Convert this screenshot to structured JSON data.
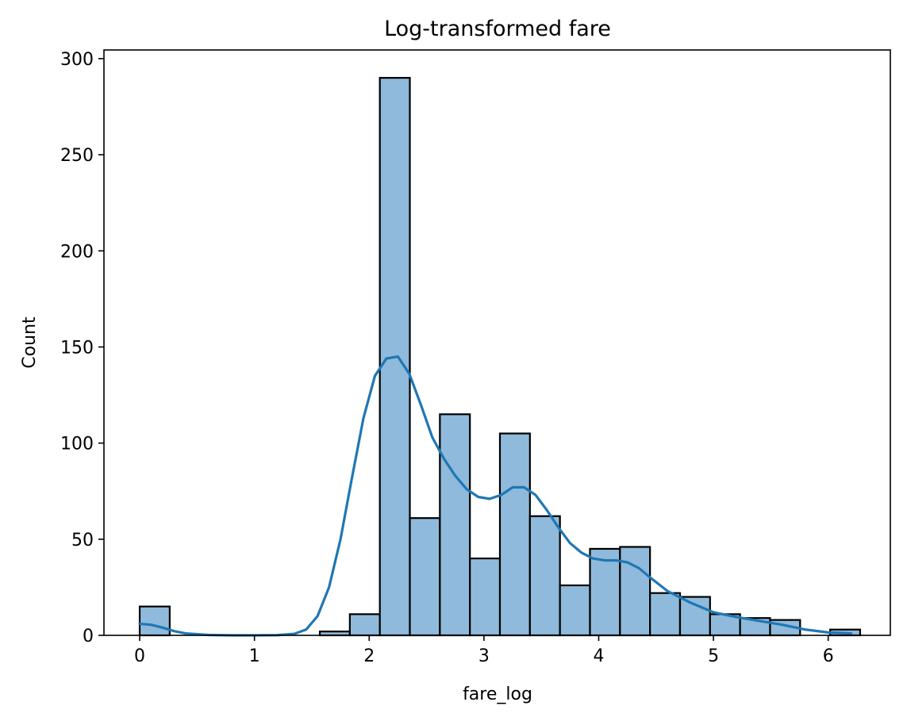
{
  "chart_data": {
    "type": "bar",
    "title": "Log-transformed fare",
    "xlabel": "fare_log",
    "ylabel": "Count",
    "xlim": [
      -0.3115,
      6.5415
    ],
    "ylim": [
      0,
      304.5
    ],
    "xticks": [
      "0",
      "1",
      "2",
      "3",
      "4",
      "5",
      "6"
    ],
    "yticks": [
      "0",
      "50",
      "100",
      "150",
      "200",
      "250",
      "300"
    ],
    "bin_width": 0.2616,
    "bins": [
      {
        "x0": 0.0,
        "x1": 0.2616,
        "count": 15
      },
      {
        "x0": 0.2616,
        "x1": 0.5232,
        "count": 0
      },
      {
        "x0": 0.5232,
        "x1": 0.7848,
        "count": 0
      },
      {
        "x0": 0.7848,
        "x1": 1.0464,
        "count": 0
      },
      {
        "x0": 1.0464,
        "x1": 1.308,
        "count": 0
      },
      {
        "x0": 1.308,
        "x1": 1.5696,
        "count": 0
      },
      {
        "x0": 1.5696,
        "x1": 1.8312,
        "count": 2
      },
      {
        "x0": 1.8312,
        "x1": 2.0928,
        "count": 11
      },
      {
        "x0": 2.0928,
        "x1": 2.3544,
        "count": 290
      },
      {
        "x0": 2.3544,
        "x1": 2.616,
        "count": 61
      },
      {
        "x0": 2.616,
        "x1": 2.8776,
        "count": 115
      },
      {
        "x0": 2.8776,
        "x1": 3.1392,
        "count": 40
      },
      {
        "x0": 3.1392,
        "x1": 3.4008,
        "count": 105
      },
      {
        "x0": 3.4008,
        "x1": 3.6624,
        "count": 62
      },
      {
        "x0": 3.6624,
        "x1": 3.924,
        "count": 26
      },
      {
        "x0": 3.924,
        "x1": 4.1856,
        "count": 45
      },
      {
        "x0": 4.1856,
        "x1": 4.4472,
        "count": 46
      },
      {
        "x0": 4.4472,
        "x1": 4.7088,
        "count": 22
      },
      {
        "x0": 4.7088,
        "x1": 4.9704,
        "count": 20
      },
      {
        "x0": 4.9704,
        "x1": 5.232,
        "count": 11
      },
      {
        "x0": 5.232,
        "x1": 5.4936,
        "count": 9
      },
      {
        "x0": 5.4936,
        "x1": 5.7552,
        "count": 8
      },
      {
        "x0": 5.7552,
        "x1": 6.0168,
        "count": 0
      },
      {
        "x0": 6.0168,
        "x1": 6.2784,
        "count": 3
      }
    ],
    "kde": {
      "x": [
        0.0,
        0.1,
        0.2,
        0.3,
        0.4,
        0.6,
        0.8,
        1.0,
        1.2,
        1.35,
        1.45,
        1.55,
        1.65,
        1.75,
        1.85,
        1.95,
        2.05,
        2.15,
        2.25,
        2.35,
        2.45,
        2.55,
        2.65,
        2.75,
        2.85,
        2.95,
        3.05,
        3.15,
        3.25,
        3.35,
        3.45,
        3.55,
        3.65,
        3.75,
        3.85,
        3.95,
        4.05,
        4.15,
        4.25,
        4.35,
        4.45,
        4.6,
        4.8,
        5.0,
        5.2,
        5.4,
        5.6,
        5.8,
        6.0,
        6.2
      ],
      "y": [
        6,
        5.5,
        4,
        2.2,
        1,
        0.2,
        0,
        0,
        0.1,
        0.8,
        3,
        10,
        25,
        50,
        82,
        113,
        135,
        144,
        145,
        136,
        120,
        103,
        92,
        83,
        76,
        72,
        71,
        73,
        77,
        77,
        73,
        65,
        56,
        48,
        43,
        40,
        39,
        39,
        38,
        35,
        30,
        23,
        17,
        12,
        9.5,
        7.5,
        5.5,
        3,
        1.5,
        1
      ]
    },
    "colors": {
      "bar_fill": "#8fbadb",
      "bar_edge": "#000000",
      "kde_line": "#1f77b4"
    },
    "grid": false
  }
}
